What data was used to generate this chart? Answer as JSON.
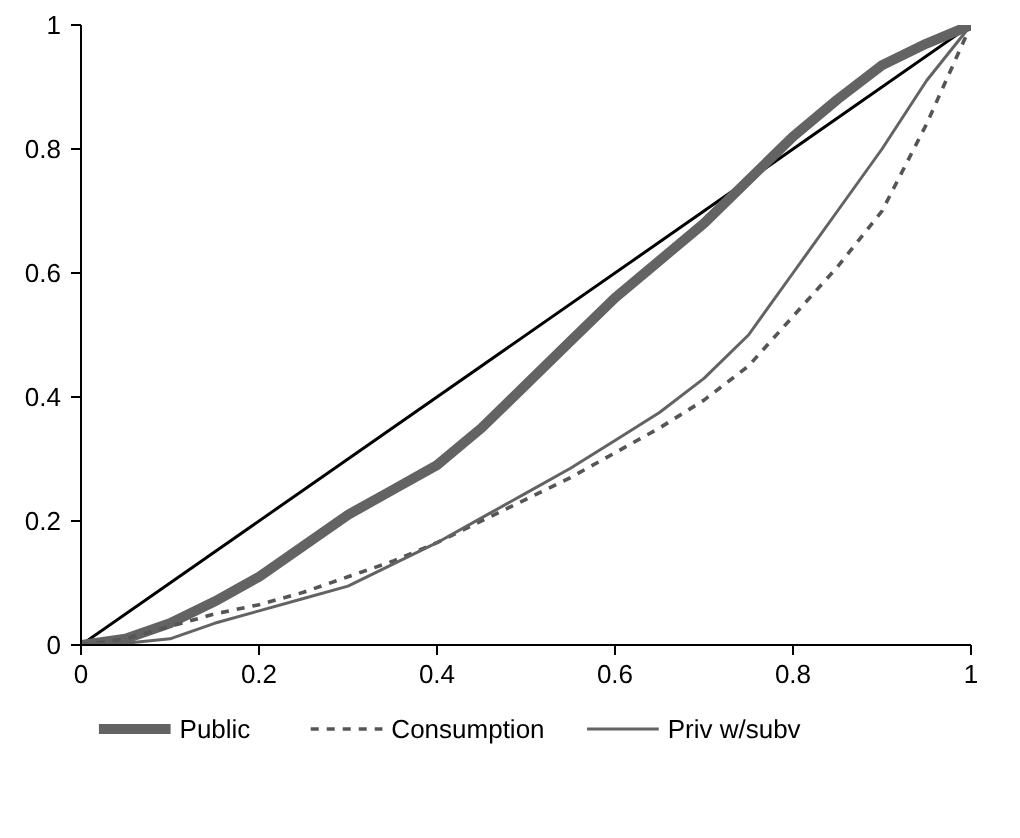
{
  "chart_data": {
    "type": "line",
    "x": [
      0,
      0.05,
      0.1,
      0.15,
      0.2,
      0.25,
      0.3,
      0.35,
      0.4,
      0.45,
      0.5,
      0.55,
      0.6,
      0.65,
      0.7,
      0.75,
      0.8,
      0.85,
      0.9,
      0.95,
      1
    ],
    "series": [
      {
        "color": "#000000",
        "x": [
          0,
          1
        ],
        "values": [
          0,
          1
        ],
        "line_style": "solid"
      },
      {
        "name": "Public",
        "color": "#636363",
        "line_style": "solid",
        "values": [
          0,
          0.01,
          0.035,
          0.07,
          0.11,
          0.16,
          0.21,
          0.25,
          0.29,
          0.35,
          0.42,
          0.49,
          0.56,
          0.62,
          0.68,
          0.75,
          0.82,
          0.88,
          0.935,
          0.97,
          1
        ]
      },
      {
        "name": "Consumption",
        "color": "#555555",
        "line_style": "dashed",
        "values": [
          0,
          0.01,
          0.03,
          0.05,
          0.065,
          0.085,
          0.11,
          0.135,
          0.165,
          0.2,
          0.235,
          0.27,
          0.31,
          0.35,
          0.395,
          0.45,
          0.53,
          0.61,
          0.7,
          0.84,
          1
        ]
      },
      {
        "name": "Priv w/subv",
        "color": "#636363",
        "line_style": "solid",
        "values": [
          0,
          0.003,
          0.01,
          0.035,
          0.055,
          0.075,
          0.095,
          0.13,
          0.165,
          0.205,
          0.245,
          0.285,
          0.33,
          0.375,
          0.43,
          0.5,
          0.6,
          0.7,
          0.8,
          0.91,
          1
        ]
      }
    ],
    "xlim": [
      0,
      1
    ],
    "ylim": [
      0,
      1
    ],
    "xticks": [
      0,
      0.2,
      0.4,
      0.6,
      0.8,
      1
    ],
    "yticks": [
      0,
      0.2,
      0.4,
      0.6,
      0.8,
      1
    ],
    "grid": false,
    "legend": "bottom",
    "marker": "none"
  }
}
